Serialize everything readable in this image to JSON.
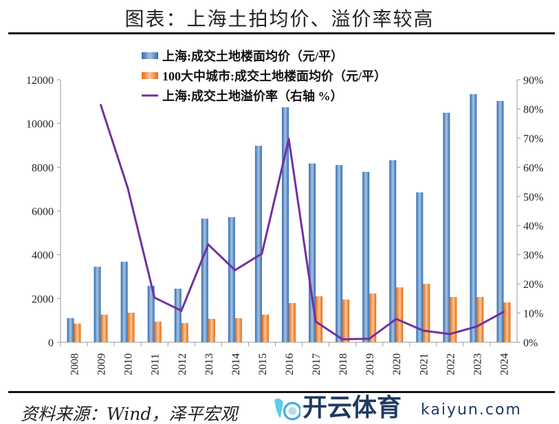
{
  "title": "图表：上海土拍均价、溢价率较高",
  "source": "资料来源：Wind，泽平宏观",
  "watermark": {
    "name": "开云体育",
    "url": "kaiyun.com"
  },
  "chart_data": {
    "type": "bar",
    "categories": [
      "2008",
      "2009",
      "2010",
      "2011",
      "2012",
      "2013",
      "2014",
      "2015",
      "2016",
      "2017",
      "2018",
      "2019",
      "2020",
      "2021",
      "2022",
      "2023",
      "2024"
    ],
    "series": [
      {
        "name": "上海:成交土地楼面均价（元/平）",
        "type": "bar",
        "axis": "left",
        "color": "#4f81bd",
        "values": [
          1100,
          3450,
          3680,
          2580,
          2450,
          5650,
          5720,
          8980,
          10740,
          8170,
          8100,
          7790,
          8320,
          6850,
          10490,
          11340,
          11030
        ]
      },
      {
        "name": "100大中城市:成交土地楼面均价（元/平）",
        "type": "bar",
        "axis": "left",
        "color": "#f79646",
        "values": [
          850,
          1260,
          1350,
          940,
          880,
          1070,
          1100,
          1260,
          1790,
          2100,
          1950,
          2230,
          2510,
          2670,
          2070,
          2070,
          1820
        ]
      },
      {
        "name": "上海:成交土地溢价率（右轴 %）",
        "type": "line",
        "axis": "right",
        "color": "#7030a0",
        "values": [
          null,
          81.3,
          53,
          15.3,
          10.8,
          33.5,
          24.7,
          30.4,
          69.7,
          7.1,
          1,
          1.2,
          8,
          4,
          2.8,
          5.4,
          10.4
        ]
      }
    ],
    "yleft": {
      "ylim": [
        0,
        12000
      ],
      "ticks": [
        "0",
        "2000",
        "4000",
        "6000",
        "8000",
        "10000",
        "12000"
      ]
    },
    "yright": {
      "ylim": [
        0,
        90
      ],
      "ticks": [
        "0%",
        "10%",
        "20%",
        "30%",
        "40%",
        "50%",
        "60%",
        "70%",
        "80%",
        "90%"
      ]
    },
    "legend": "top-center",
    "grid": false
  }
}
